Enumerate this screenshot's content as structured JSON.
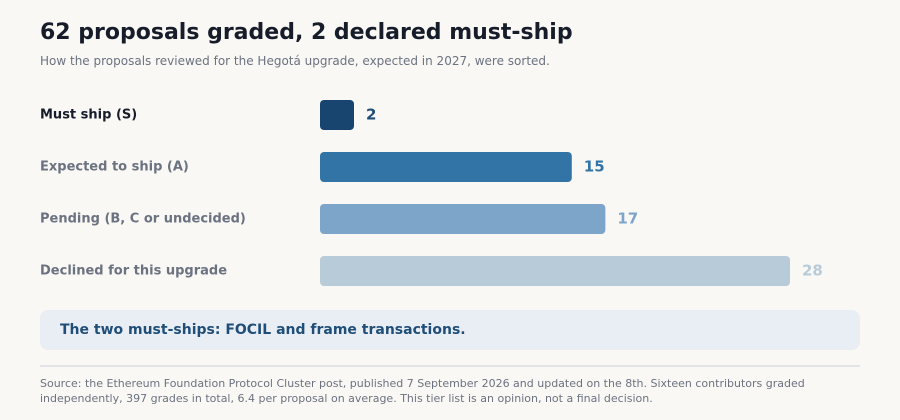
{
  "title": "62 proposals graded, 2 declared must-ship",
  "subtitle": "How the proposals reviewed for the Hegotá upgrade, expected in 2027, were sorted.",
  "chart_data": {
    "type": "bar",
    "orientation": "horizontal",
    "grid": false,
    "categories": [
      "Must ship (S)",
      "Expected to ship (A)",
      "Pending (B, C or undecided)",
      "Declined for this upgrade"
    ],
    "values": [
      2,
      15,
      17,
      28
    ],
    "colors": [
      "#17456f",
      "#3374a6",
      "#7da4c9",
      "#b8cbd8"
    ],
    "label_colors": [
      "#171c2a",
      "#6b7280",
      "#6b7280",
      "#6b7280"
    ]
  },
  "callout": "The two must-ships: FOCIL and frame transactions.",
  "source": "Source: the Ethereum Foundation Protocol Cluster post, published 7 September 2026 and updated on the 8th. Sixteen contributors graded independently, 397 grades in total, 6.4 per proposal on average. This tier list is an opinion, not a final decision."
}
